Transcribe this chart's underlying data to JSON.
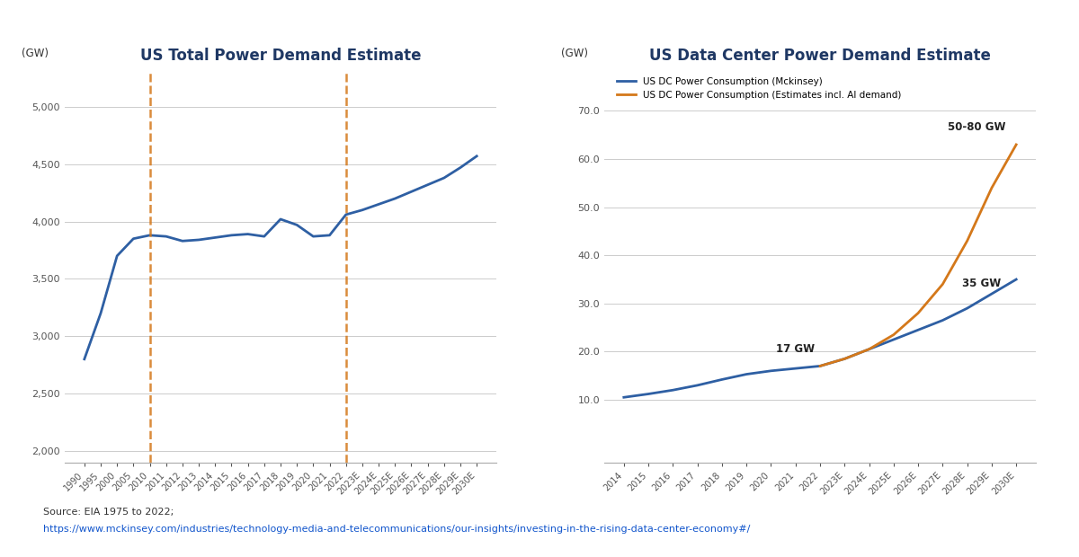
{
  "left_title": "US Total Power Demand Estimate",
  "right_title": "US Data Center Power Demand Estimate",
  "left_ylabel": "(GW)",
  "right_ylabel": "(GW)",
  "left_ylim": [
    1900,
    5300
  ],
  "right_ylim": [
    -3,
    78
  ],
  "left_yticks": [
    2000,
    2500,
    3000,
    3500,
    4000,
    4500,
    5000
  ],
  "right_yticks": [
    10.0,
    20.0,
    30.0,
    40.0,
    50.0,
    60.0,
    70.0
  ],
  "left_x_labels": [
    "1990",
    "1995",
    "2000",
    "2005",
    "2010",
    "2011",
    "2012",
    "2013",
    "2014",
    "2015",
    "2016",
    "2017",
    "2018",
    "2019",
    "2020",
    "2021",
    "2022",
    "2023E",
    "2024E",
    "2025E",
    "2026E",
    "2027E",
    "2028E",
    "2029E",
    "2030E"
  ],
  "left_y_values": [
    2800,
    3200,
    3700,
    3850,
    3880,
    3870,
    3830,
    3840,
    3860,
    3880,
    3890,
    3870,
    4020,
    3970,
    3870,
    3880,
    4060,
    4100,
    4150,
    4200,
    4260,
    4320,
    4380,
    4470,
    4570
  ],
  "left_vline_x1": "2010",
  "left_vline_x2": "2022",
  "right_x_labels": [
    "2014",
    "2015",
    "2016",
    "2017",
    "2018",
    "2019",
    "2020",
    "2021",
    "2022",
    "2023E",
    "2024E",
    "2025E",
    "2026E",
    "2027E",
    "2028E",
    "2029E",
    "2030E"
  ],
  "right_blue_values": [
    10.5,
    11.2,
    12.0,
    13.0,
    14.2,
    15.3,
    16.0,
    16.5,
    17.0,
    18.5,
    20.5,
    22.5,
    24.5,
    26.5,
    29.0,
    32.0,
    35.0
  ],
  "right_orange_values": [
    null,
    null,
    null,
    null,
    null,
    null,
    null,
    null,
    17.0,
    18.5,
    20.5,
    23.5,
    28.0,
    34.0,
    43.0,
    54.0,
    63.0
  ],
  "line_color_blue": "#2E5FA3",
  "line_color_orange": "#D4781A",
  "dashed_line_color": "#D4781A",
  "title_color": "#1F3864",
  "source_text": "Source: EIA 1975 to 2022;",
  "source_url": "https://www.mckinsey.com/industries/technology-media-and-telecommunications/our-insights/investing-in-the-rising-data-center-economy#/",
  "legend_blue": "US DC Power Consumption (Mckinsey)",
  "legend_orange": "US DC Power Consumption (Estimates incl. AI demand)",
  "background_color": "#ffffff",
  "grid_color": "#cccccc"
}
